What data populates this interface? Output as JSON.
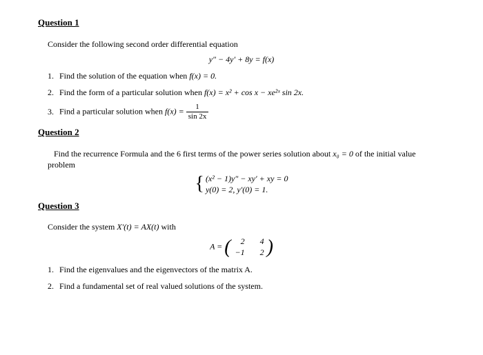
{
  "q1": {
    "heading": "Question 1",
    "intro": "Consider the following second order differential equation",
    "main_eq": "y″ − 4y′ + 8y = f(x)",
    "items": {
      "1": {
        "num": "1.",
        "text_a": "Find the solution of the equation when ",
        "fx": "f(x) = 0."
      },
      "2": {
        "num": "2.",
        "text_a": "Find the form of a particular solution when ",
        "fx": "f(x) = x² + cos x − xe²ˣ sin 2x."
      },
      "3": {
        "num": "3.",
        "text_a": "Find a particular solution when ",
        "fx_lhs": "f(x) = ",
        "frac_num": "1",
        "frac_den": "sin 2x"
      }
    }
  },
  "q2": {
    "heading": "Question 2",
    "intro_a": "Find the recurrence Formula and the 6 first terms of the power series solution about ",
    "x0": "x₀ = 0",
    "intro_b": " of the initial value problem",
    "sys_line1": "(x² − 1)y″ − xy′ + xy = 0",
    "sys_line2": "y(0) = 2,    y′(0) = 1."
  },
  "q3": {
    "heading": "Question 3",
    "intro_a": "Consider the system ",
    "sys": "X′(t) = AX(t)",
    "intro_b": " with",
    "matrix_lhs": "A = ",
    "m": {
      "a": "2",
      "b": "4",
      "c": "−1",
      "d": "2"
    },
    "items": {
      "1": {
        "num": "1.",
        "text": "Find the eigenvalues and the eigenvectors of the matrix A."
      },
      "2": {
        "num": "2.",
        "text": "Find a fundamental set of real valued solutions of the system."
      }
    }
  }
}
